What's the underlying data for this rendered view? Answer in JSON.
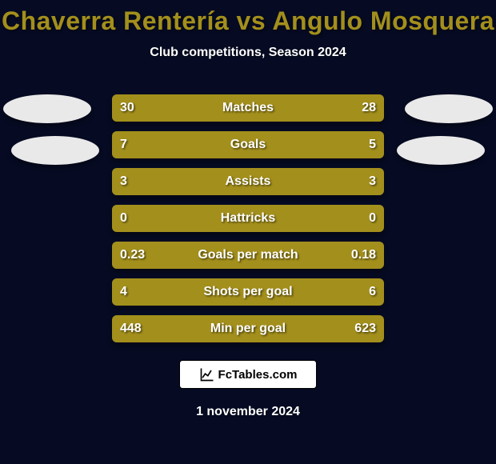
{
  "title_color": "#a38f1c",
  "text_color": "#ffffff",
  "background_color": "#060b23",
  "bar_bg_color": "#2b2b2b",
  "left_color": "#a38f1c",
  "right_color": "#a38f1c",
  "avatar_color": "#e9e9e9",
  "title": "Chaverra Rentería vs Angulo Mosquera",
  "subtitle": "Club competitions, Season 2024",
  "logo_text": "FcTables.com",
  "date": "1 november 2024",
  "rows": [
    {
      "label": "Matches",
      "left": "30",
      "right": "28",
      "left_pct": 52,
      "right_pct": 48
    },
    {
      "label": "Goals",
      "left": "7",
      "right": "5",
      "left_pct": 58,
      "right_pct": 42
    },
    {
      "label": "Assists",
      "left": "3",
      "right": "3",
      "left_pct": 50,
      "right_pct": 50
    },
    {
      "label": "Hattricks",
      "left": "0",
      "right": "0",
      "left_pct": 50,
      "right_pct": 50
    },
    {
      "label": "Goals per match",
      "left": "0.23",
      "right": "0.18",
      "left_pct": 56,
      "right_pct": 44
    },
    {
      "label": "Shots per goal",
      "left": "4",
      "right": "6",
      "left_pct": 40,
      "right_pct": 60
    },
    {
      "label": "Min per goal",
      "left": "448",
      "right": "623",
      "left_pct": 42,
      "right_pct": 58
    }
  ]
}
